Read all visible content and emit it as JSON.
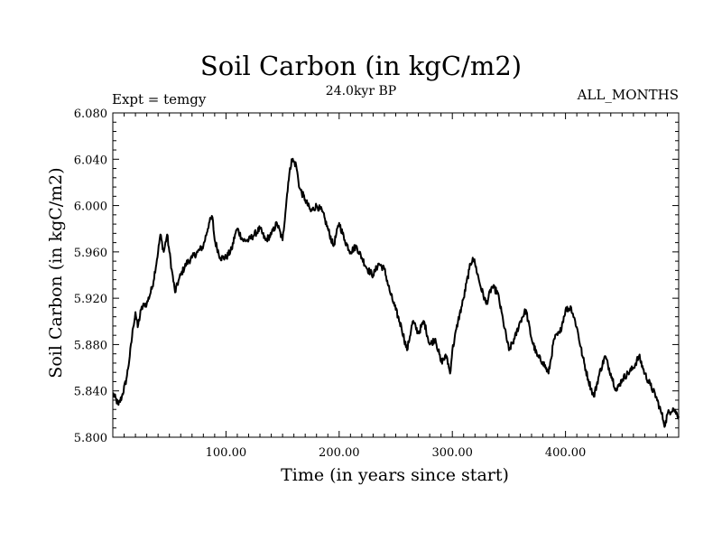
{
  "chart_data": {
    "type": "line",
    "title": "Soil Carbon (in kgC/m2)",
    "subtitle": "24.0kyr BP",
    "left_label": "Expt = temgy",
    "right_label": "ALL_MONTHS",
    "xlabel": "Time (in years since start)",
    "ylabel": "Soil Carbon (in kgC/m2)",
    "xlim": [
      0,
      500
    ],
    "ylim": [
      5.8,
      6.08
    ],
    "xticks": [
      100,
      200,
      300,
      400
    ],
    "xtick_labels": [
      "100.00",
      "200.00",
      "300.00",
      "400.00"
    ],
    "yticks": [
      5.8,
      5.84,
      5.88,
      5.92,
      5.96,
      6.0,
      6.04,
      6.08
    ],
    "ytick_labels": [
      "5.800",
      "5.840",
      "5.880",
      "5.920",
      "5.960",
      "6.000",
      "6.040",
      "6.080"
    ],
    "grid": false,
    "series": [
      {
        "name": "Soil Carbon",
        "x": [
          0,
          5,
          8,
          12,
          15,
          18,
          20,
          22,
          25,
          28,
          30,
          35,
          40,
          42,
          45,
          48,
          50,
          52,
          55,
          58,
          60,
          65,
          70,
          75,
          80,
          85,
          88,
          90,
          95,
          100,
          105,
          108,
          110,
          115,
          120,
          125,
          130,
          135,
          140,
          145,
          150,
          155,
          158,
          162,
          165,
          170,
          175,
          180,
          185,
          190,
          195,
          200,
          205,
          210,
          215,
          220,
          225,
          230,
          235,
          240,
          245,
          250,
          255,
          260,
          265,
          270,
          275,
          280,
          285,
          290,
          295,
          298,
          300,
          305,
          310,
          315,
          318,
          320,
          325,
          330,
          335,
          340,
          345,
          350,
          355,
          360,
          365,
          370,
          375,
          380,
          385,
          390,
          395,
          400,
          405,
          410,
          415,
          420,
          425,
          430,
          435,
          440,
          445,
          450,
          455,
          460,
          465,
          470,
          475,
          480,
          485,
          488,
          490,
          495,
          500
        ],
        "values": [
          5.838,
          5.828,
          5.835,
          5.85,
          5.87,
          5.895,
          5.908,
          5.895,
          5.91,
          5.915,
          5.915,
          5.93,
          5.96,
          5.975,
          5.96,
          5.975,
          5.96,
          5.945,
          5.925,
          5.935,
          5.94,
          5.95,
          5.955,
          5.96,
          5.965,
          5.985,
          5.99,
          5.97,
          5.955,
          5.955,
          5.962,
          5.975,
          5.98,
          5.97,
          5.97,
          5.975,
          5.98,
          5.97,
          5.975,
          5.985,
          5.97,
          6.02,
          6.04,
          6.035,
          6.015,
          6.005,
          5.995,
          6.0,
          5.995,
          5.98,
          5.965,
          5.985,
          5.97,
          5.96,
          5.965,
          5.955,
          5.945,
          5.94,
          5.95,
          5.945,
          5.925,
          5.91,
          5.895,
          5.875,
          5.9,
          5.89,
          5.9,
          5.88,
          5.885,
          5.865,
          5.87,
          5.855,
          5.875,
          5.9,
          5.92,
          5.945,
          5.955,
          5.95,
          5.93,
          5.915,
          5.93,
          5.925,
          5.9,
          5.875,
          5.885,
          5.9,
          5.91,
          5.885,
          5.87,
          5.865,
          5.855,
          5.885,
          5.89,
          5.91,
          5.912,
          5.895,
          5.87,
          5.85,
          5.835,
          5.855,
          5.87,
          5.855,
          5.84,
          5.85,
          5.855,
          5.86,
          5.87,
          5.855,
          5.845,
          5.835,
          5.82,
          5.81,
          5.82,
          5.825,
          5.818
        ]
      }
    ]
  }
}
